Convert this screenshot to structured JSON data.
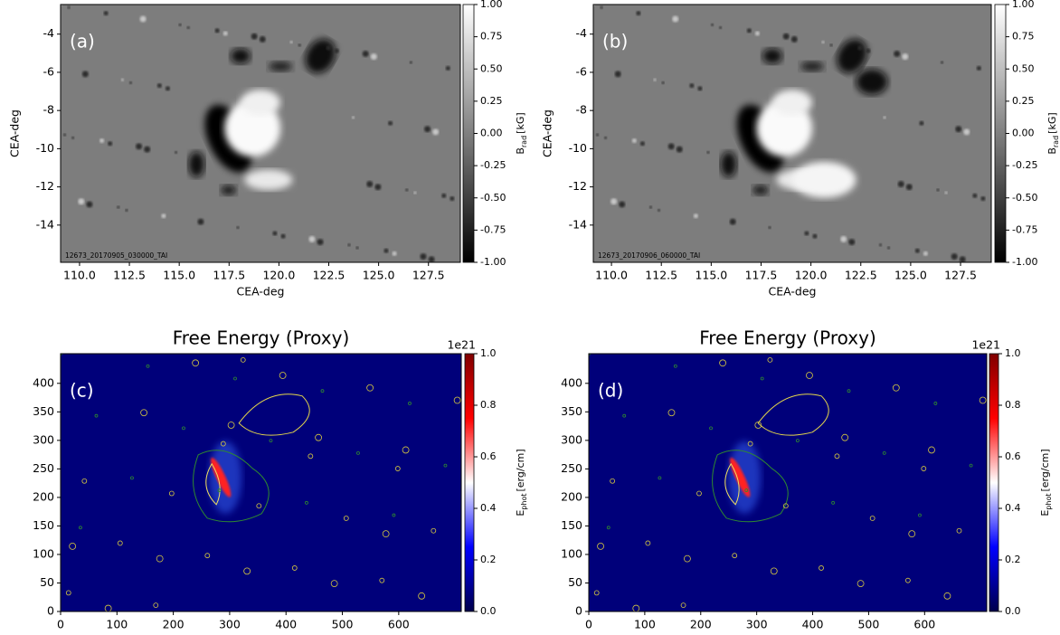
{
  "chart_data": [
    {
      "type": "image",
      "panel_label": "(a)",
      "stamp": "12673_20170905_030000_TAI",
      "xlabel": "CEA-deg",
      "ylabel": "CEA-deg",
      "colormap": "gray",
      "xlim": [
        109.05,
        129.1
      ],
      "ylim": [
        -15.95,
        -2.45
      ],
      "xticks": [
        {
          "value": 110,
          "label": "110.0"
        },
        112.5,
        {
          "value": 115,
          "label": "115.0"
        },
        117.5,
        {
          "value": 120,
          "label": "120.0"
        },
        122.5,
        {
          "value": 125,
          "label": "125.0"
        },
        127.5
      ],
      "yticks": [
        -4,
        -6,
        -8,
        -10,
        -12,
        -14
      ],
      "colorbar": {
        "label": [
          "B",
          "rad",
          "[kG]"
        ],
        "lim": [
          -1,
          1
        ],
        "ticks": [
          {
            "value": 1,
            "label": "1.00"
          },
          0.75,
          {
            "value": 0.5,
            "label": "0.50"
          },
          0.25,
          {
            "value": 0,
            "label": "0.00"
          },
          -0.25,
          {
            "value": -0.5,
            "label": "-0.50"
          },
          -0.75,
          {
            "value": -1,
            "label": "-1.00"
          }
        ]
      }
    },
    {
      "type": "image",
      "panel_label": "(b)",
      "stamp": "12673_20170906_060000_TAI",
      "xlabel": "CEA-deg",
      "ylabel": "CEA-deg",
      "colormap": "gray",
      "xlim": [
        109.09,
        129.04
      ],
      "ylim": [
        -15.95,
        -2.45
      ],
      "xticks": [
        {
          "value": 110,
          "label": "110.0"
        },
        112.5,
        {
          "value": 115,
          "label": "115.0"
        },
        117.5,
        {
          "value": 120,
          "label": "120.0"
        },
        122.5,
        {
          "value": 125,
          "label": "125.0"
        },
        127.5
      ],
      "yticks": [
        -4,
        -6,
        -8,
        -10,
        -12,
        -14
      ],
      "colorbar": {
        "label": [
          "B",
          "rad",
          "[kG]"
        ],
        "lim": [
          -1,
          1
        ],
        "ticks": [
          {
            "value": 1,
            "label": "1.00"
          },
          0.75,
          {
            "value": 0.5,
            "label": "0.50"
          },
          0.25,
          {
            "value": 0,
            "label": "0.00"
          },
          -0.25,
          {
            "value": -0.5,
            "label": "-0.50"
          },
          -0.75,
          {
            "value": -1,
            "label": "-1.00"
          }
        ]
      }
    },
    {
      "type": "image",
      "title": "Free Energy (Proxy)",
      "panel_label": "(c)",
      "colormap": "seismic",
      "xlim": [
        0,
        711
      ],
      "ylim": [
        0,
        452
      ],
      "xticks": [
        0,
        100,
        200,
        300,
        400,
        500,
        600
      ],
      "yticks": [
        0,
        50,
        100,
        150,
        200,
        250,
        300,
        350,
        400
      ],
      "colorbar": {
        "label": [
          "E",
          "phot",
          "[erg/cm]"
        ],
        "lim": [
          0,
          1
        ],
        "offset": "1e21",
        "ticks": [
          {
            "value": 0,
            "label": "0.0"
          },
          0.2,
          0.4,
          0.6,
          0.8,
          {
            "value": 1,
            "label": "1.0"
          }
        ]
      }
    },
    {
      "type": "image",
      "title": "Free Energy (Proxy)",
      "panel_label": "(d)",
      "colormap": "seismic",
      "xlim": [
        0,
        711
      ],
      "ylim": [
        0,
        452
      ],
      "xticks": [
        0,
        100,
        200,
        300,
        400,
        500,
        600
      ],
      "yticks": [
        0,
        50,
        100,
        150,
        200,
        250,
        300,
        350,
        400
      ],
      "colorbar": {
        "label": [
          "E",
          "phot",
          "[erg/cm]"
        ],
        "lim": [
          0,
          1
        ],
        "offset": "1e21",
        "ticks": [
          {
            "value": 0,
            "label": "0.0"
          },
          0.2,
          0.4,
          0.6,
          0.8,
          {
            "value": 1,
            "label": "1.0"
          }
        ]
      }
    }
  ]
}
